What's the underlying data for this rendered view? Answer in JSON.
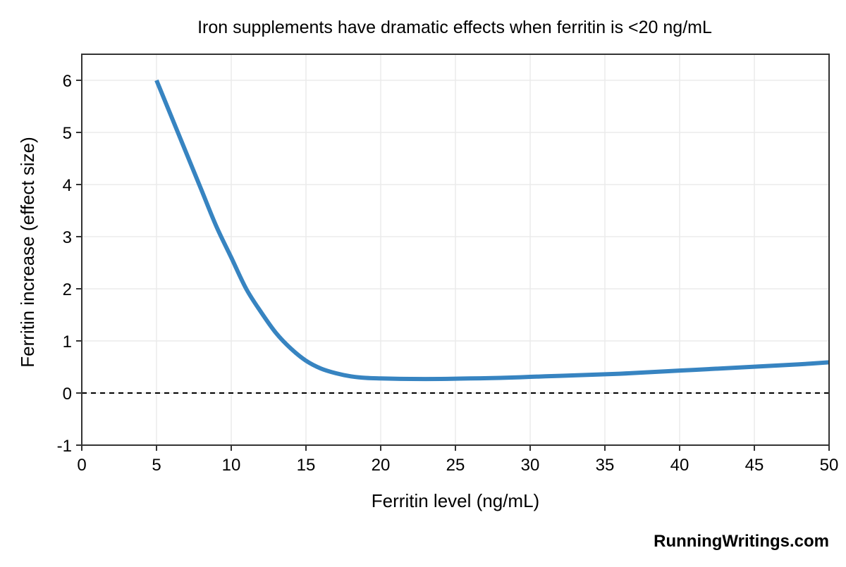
{
  "chart_data": {
    "type": "line",
    "title": "Iron supplements have dramatic effects when ferritin is <20 ng/mL",
    "xlabel": "Ferritin level (ng/mL)",
    "ylabel": "Ferritin increase (effect size)",
    "xlim": [
      0,
      50
    ],
    "ylim": [
      -1,
      6.5
    ],
    "xticks": [
      0,
      5,
      10,
      15,
      20,
      25,
      30,
      35,
      40,
      45,
      50
    ],
    "yticks": [
      -1,
      0,
      1,
      2,
      3,
      4,
      5,
      6
    ],
    "xtick_labels": [
      "0",
      "5",
      "10",
      "15",
      "20",
      "25",
      "30",
      "35",
      "40",
      "45",
      "50"
    ],
    "ytick_labels": [
      "-1",
      "0",
      "1",
      "2",
      "3",
      "4",
      "5",
      "6"
    ],
    "grid": true,
    "series": [
      {
        "color": "#3784C1",
        "x": [
          5,
          6,
          7,
          8,
          9,
          10,
          11,
          12,
          13,
          14,
          15,
          16,
          17,
          18,
          19,
          20,
          22,
          24,
          26,
          28,
          30,
          32,
          34,
          36,
          38,
          40,
          42,
          44,
          46,
          48,
          50
        ],
        "y": [
          6.0,
          5.3,
          4.6,
          3.9,
          3.2,
          2.6,
          2.0,
          1.55,
          1.15,
          0.85,
          0.62,
          0.47,
          0.38,
          0.32,
          0.29,
          0.28,
          0.27,
          0.27,
          0.28,
          0.29,
          0.31,
          0.33,
          0.35,
          0.37,
          0.4,
          0.43,
          0.46,
          0.49,
          0.52,
          0.55,
          0.59
        ]
      }
    ],
    "reference_line": {
      "y": 0,
      "style": "dashed",
      "color": "#000000"
    }
  },
  "watermark": "RunningWritings.com"
}
